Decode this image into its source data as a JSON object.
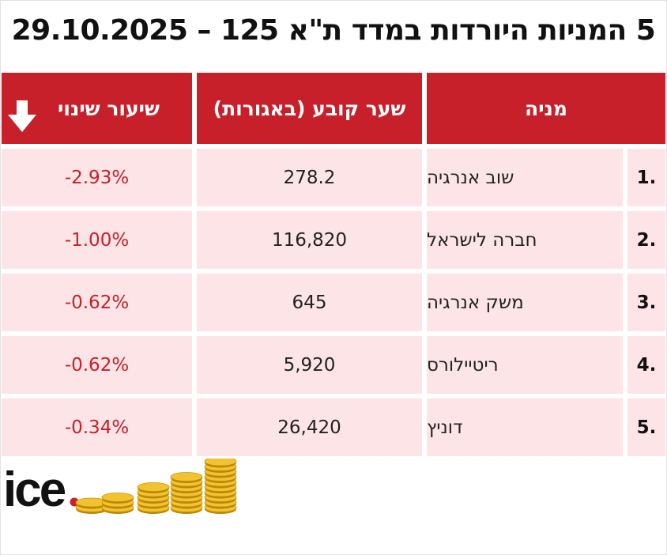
{
  "title": "5 המניות היורדות במדד ת\"א 125 – 29.10.2025",
  "headers": {
    "stock": "מניה",
    "price": "שער קובע (באגורות)",
    "change": "שיעור שינוי"
  },
  "rows": [
    {
      "num": "1.",
      "name": "שוב אנרגיה",
      "price": "278.2",
      "change": "-2.93%"
    },
    {
      "num": "2.",
      "name": "חברה לישראל",
      "price": "116,820",
      "change": "-1.00%"
    },
    {
      "num": "3.",
      "name": "משק אנרגיה",
      "price": "645",
      "change": "-0.62%"
    },
    {
      "num": "4.",
      "name": "ריטיילורס",
      "price": "5,920",
      "change": "-0.62%"
    },
    {
      "num": "5.",
      "name": "דוניץ",
      "price": "26,420",
      "change": "-0.34%"
    }
  ],
  "logo": {
    "text": "ice",
    "dot_color": "#c8202a"
  },
  "colors": {
    "header": "#c8202a",
    "row_bg": "#fde4e6",
    "change_text": "#c8202a"
  },
  "icons": {
    "change_header": "down-arrow-icon"
  }
}
